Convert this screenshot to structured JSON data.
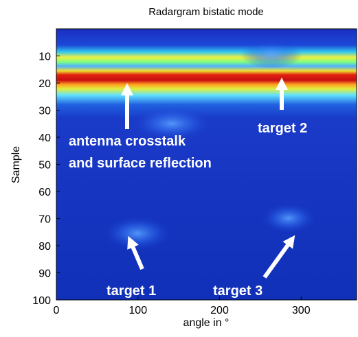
{
  "chart_data": {
    "type": "heatmap",
    "title": "Radargram bistatic mode",
    "xlabel": "angle in °",
    "ylabel": "Sample",
    "xlim": [
      0,
      368
    ],
    "ylim": [
      0,
      100
    ],
    "y_reversed": true,
    "xticks": [
      0,
      100,
      200,
      300
    ],
    "yticks": [
      10,
      20,
      30,
      40,
      50,
      60,
      70,
      80,
      90,
      100
    ],
    "annotations": [
      "antenna crosstalk",
      "and surface reflection",
      "target 2",
      "target 1",
      "target 3"
    ]
  }
}
